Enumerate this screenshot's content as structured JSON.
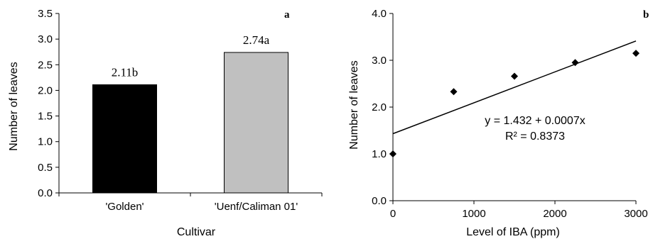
{
  "chart_data": [
    {
      "type": "bar",
      "panel_label": "a",
      "xlabel": "Cultivar",
      "ylabel": "Number of leaves",
      "ylim": [
        0,
        3.5
      ],
      "yticks": [
        "0.0",
        "0.5",
        "1.0",
        "1.5",
        "2.0",
        "2.5",
        "3.0",
        "3.5"
      ],
      "categories": [
        "'Golden'",
        "'Uenf/Caliman 01'"
      ],
      "values": [
        2.11,
        2.74
      ],
      "data_labels": [
        "2.11b",
        "2.74a"
      ],
      "bar_colors": [
        "#000000",
        "#c0c0c0"
      ],
      "grid": false
    },
    {
      "type": "scatter",
      "panel_label": "b",
      "xlabel": "Level of  IBA (ppm)",
      "ylabel": "Number of leaves",
      "xlim": [
        0,
        3000
      ],
      "ylim": [
        0,
        4.0
      ],
      "xticks": [
        "0",
        "1000",
        "2000",
        "3000"
      ],
      "yticks": [
        "0.0",
        "1.0",
        "2.0",
        "3.0",
        "4.0"
      ],
      "x": [
        0,
        750,
        1500,
        2250,
        3000
      ],
      "y": [
        1.0,
        2.33,
        2.66,
        2.95,
        3.15
      ],
      "trendline": {
        "intercept": 1.432,
        "slope": 0.00066
      },
      "equation": "y = 1.432 + 0.0007x",
      "r_squared": "R² = 0.8373",
      "marker": "diamond",
      "grid": false
    }
  ]
}
